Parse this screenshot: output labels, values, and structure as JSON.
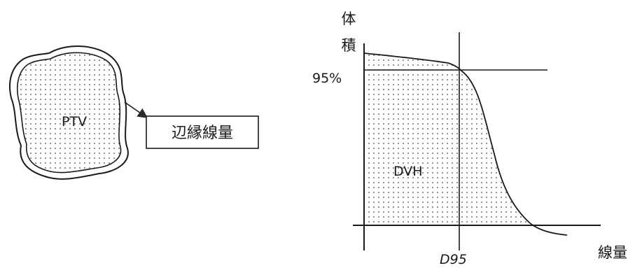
{
  "left_panel": {
    "target_label": "PTV",
    "margin_box_label": "辺縁線量"
  },
  "dvh_panel": {
    "y_axis_label_chars": [
      "体",
      "積"
    ],
    "y_reference_label": "95%",
    "curve_label": "DVH",
    "x_reference_label": "D95",
    "x_axis_label": "線量"
  }
}
